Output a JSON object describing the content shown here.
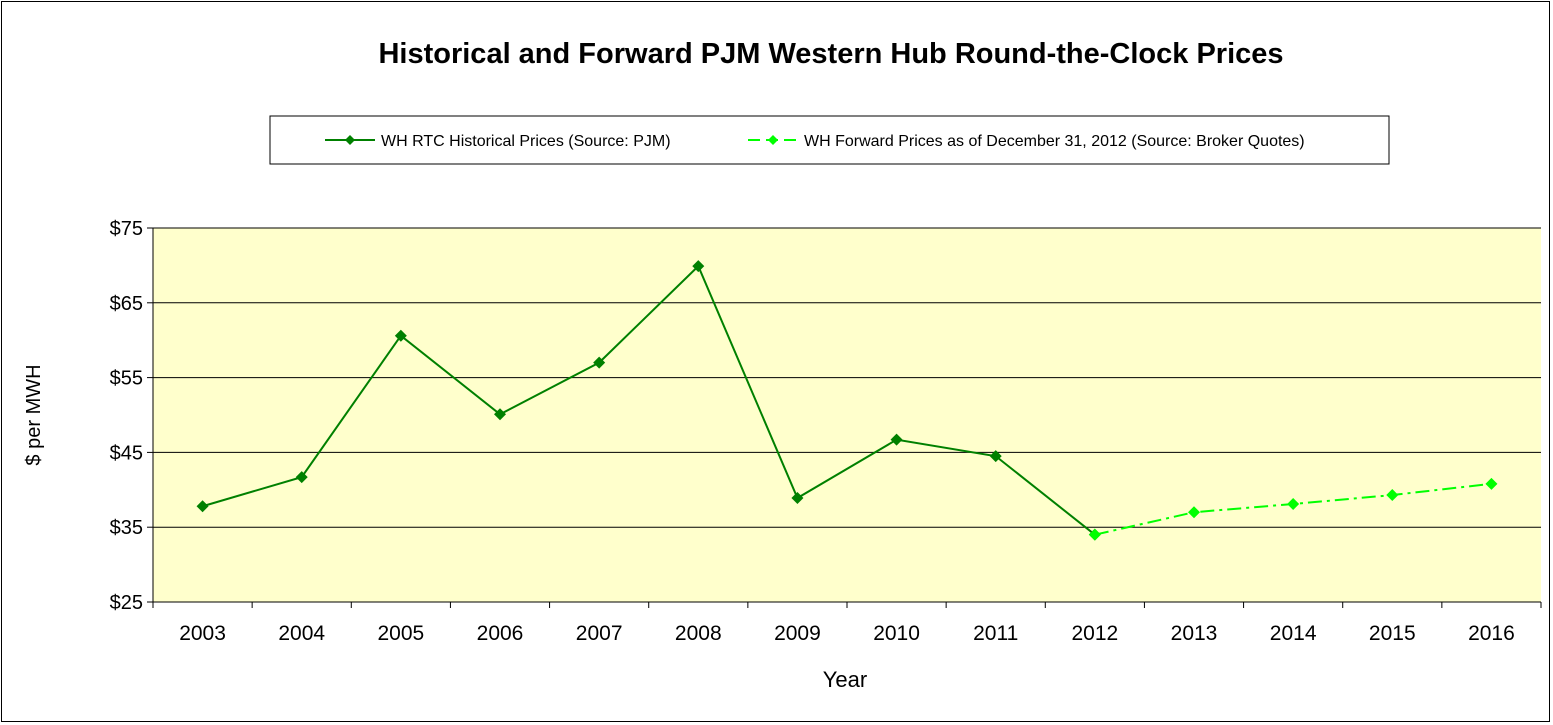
{
  "chart_data": {
    "type": "line",
    "title": "Historical and Forward PJM Western Hub Round-the-Clock Prices",
    "xlabel": "Year",
    "ylabel": "$ per MWH",
    "ylim": [
      25,
      75
    ],
    "yticks": [
      25,
      35,
      45,
      55,
      65,
      75
    ],
    "ytick_labels": [
      "$25",
      "$35",
      "$45",
      "$55",
      "$65",
      "$75"
    ],
    "categories": [
      "2003",
      "2004",
      "2005",
      "2006",
      "2007",
      "2008",
      "2009",
      "2010",
      "2011",
      "2012",
      "2013",
      "2014",
      "2015",
      "2016"
    ],
    "grid": "horizontal",
    "legend_position": "top",
    "plot_background": "#ffffcc",
    "series": [
      {
        "name": "WH RTC Historical Prices (Source: PJM)",
        "color": "#008000",
        "style": "solid",
        "values": [
          37.8,
          41.7,
          60.6,
          50.1,
          57.0,
          69.9,
          38.9,
          46.7,
          44.5,
          34.0,
          null,
          null,
          null,
          null
        ]
      },
      {
        "name": "WH Forward Prices as of December 31, 2012 (Source: Broker Quotes)",
        "color": "#00ff00",
        "style": "dash-dot",
        "values": [
          null,
          null,
          null,
          null,
          null,
          null,
          null,
          null,
          null,
          34.0,
          37.0,
          38.1,
          39.3,
          40.8
        ]
      }
    ]
  }
}
